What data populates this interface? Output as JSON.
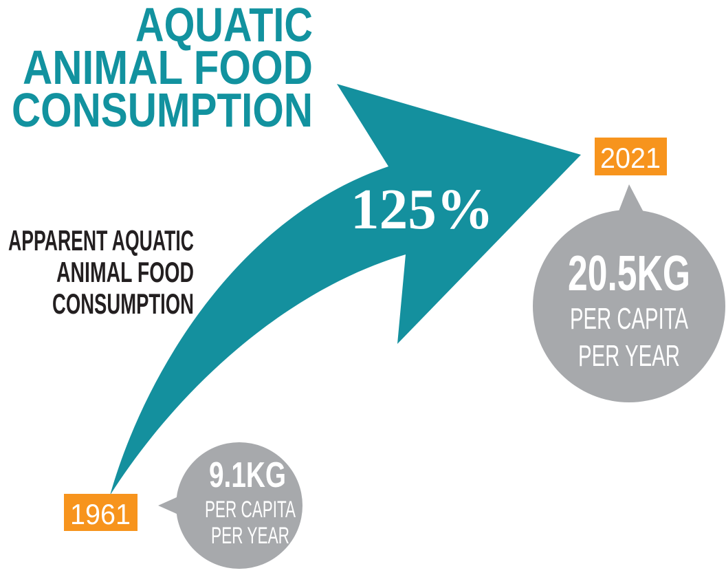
{
  "title": [
    "AQUATIC",
    "ANIMAL FOOD",
    "CONSUMPTION"
  ],
  "subtitle": [
    "APPARENT AQUATIC",
    "ANIMAL FOOD",
    "CONSUMPTION"
  ],
  "growth": "125%",
  "start": {
    "year": "1961",
    "value": "9.1KG",
    "unit": [
      "PER CAPITA",
      "PER YEAR"
    ]
  },
  "end": {
    "year": "2021",
    "value": "20.5KG",
    "unit": [
      "PER CAPITA",
      "PER YEAR"
    ]
  }
}
